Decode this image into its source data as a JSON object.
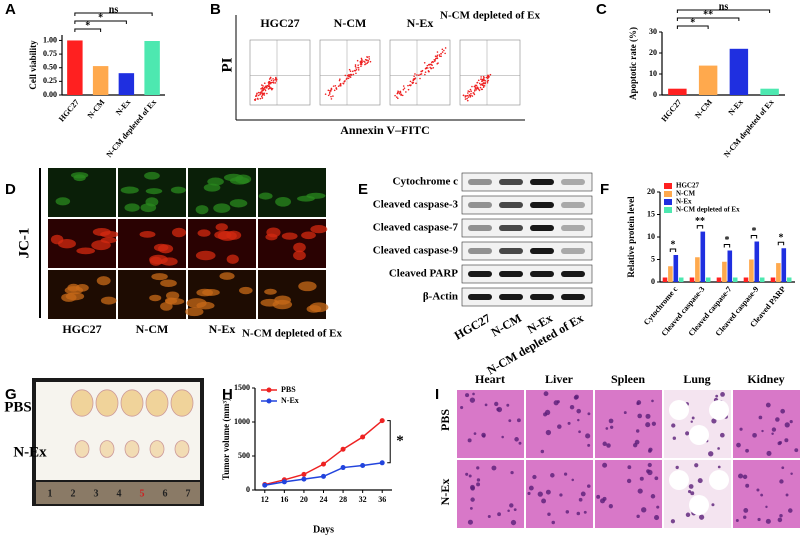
{
  "panel_labels": [
    "A",
    "B",
    "C",
    "D",
    "E",
    "F",
    "G",
    "H",
    "I"
  ],
  "chart_data": [
    {
      "type": "bar",
      "y_label": "Cell viability",
      "categories": [
        "HGC27",
        "N-CM",
        "N-Ex",
        "N-CM depleted of Ex"
      ],
      "values": [
        1.0,
        0.53,
        0.4,
        0.99
      ],
      "colors": [
        "#ff2020",
        "#ffa94d",
        "#1f2fe0",
        "#4de8b0"
      ],
      "ylim": [
        0,
        1.1
      ],
      "yticks": [
        {
          "value": 0,
          "label": "0.00"
        },
        {
          "value": 0.25,
          "label": "0.25"
        },
        {
          "value": 0.5,
          "label": "0.50"
        },
        {
          "value": 0.75,
          "label": "0.75"
        },
        {
          "value": 1,
          "label": "1.00"
        }
      ],
      "significance": [
        "*",
        "*",
        "ns"
      ]
    },
    {
      "type": "bar",
      "y_label": "Apoptotic rate (%)",
      "categories": [
        "HGC27",
        "N-CM",
        "N-Ex",
        "N-CM depleted of Ex"
      ],
      "values": [
        3,
        14,
        22,
        3
      ],
      "colors": [
        "#ff2020",
        "#ffa94d",
        "#1f2fe0",
        "#4de8b0"
      ],
      "ylim": [
        0,
        30
      ],
      "yticks": [
        0,
        10,
        20,
        30
      ],
      "significance": [
        "*",
        "**",
        "ns"
      ]
    },
    {
      "type": "grouped-bar",
      "y_label": "Relative protein level",
      "categories": [
        "Cytochrome c",
        "Cleaved caspase-3",
        "Cleaved caspase-7",
        "Cleaved caspase-9",
        "Cleaved PARP"
      ],
      "series": [
        {
          "name": "HGC27",
          "color": "#ff2020",
          "values": [
            1,
            1,
            1,
            1,
            1
          ]
        },
        {
          "name": "N-CM",
          "color": "#ffa94d",
          "values": [
            3.5,
            5.5,
            4.5,
            5,
            4.2
          ]
        },
        {
          "name": "N-Ex",
          "color": "#1f2fe0",
          "values": [
            6,
            11.2,
            7,
            9,
            7.5
          ]
        },
        {
          "name": "N-CM depleted of Ex",
          "color": "#4de8b0",
          "values": [
            1,
            1,
            1,
            1,
            1
          ]
        }
      ],
      "ylim": [
        0,
        20
      ],
      "yticks": [
        0,
        5,
        10,
        15,
        20
      ],
      "significance": [
        "*",
        "**",
        "*",
        "*",
        "*"
      ]
    },
    {
      "type": "line",
      "x_label": "Days",
      "y_label": "Tumor volume (mm³)",
      "x": [
        12,
        16,
        20,
        24,
        28,
        32,
        36
      ],
      "series": [
        {
          "name": "PBS",
          "color": "#ee2222",
          "values": [
            80,
            150,
            230,
            380,
            600,
            780,
            1020
          ]
        },
        {
          "name": "N-Ex",
          "color": "#2244dd",
          "values": [
            70,
            120,
            160,
            200,
            330,
            360,
            400
          ]
        }
      ],
      "xlim": [
        10,
        38
      ],
      "xticks": [
        12,
        16,
        20,
        24,
        28,
        32,
        36
      ],
      "ylim": [
        0,
        1500
      ],
      "yticks": [
        0,
        500,
        1000,
        1500
      ],
      "significance": [
        "*"
      ]
    }
  ],
  "flow": {
    "groups": [
      "HGC27",
      "N-CM",
      "N-Ex",
      "N-CM depleted of Ex"
    ],
    "y_label": "PI",
    "x_label": "Annexin V–FITC"
  },
  "jc1": {
    "label": "JC-1",
    "groups": [
      "HGC27",
      "N-CM",
      "N-Ex",
      "N-CM depleted of Ex"
    ]
  },
  "western": {
    "proteins": [
      "Cytochrome c",
      "Cleaved caspase-3",
      "Cleaved caspase-7",
      "Cleaved caspase-9",
      "Cleaved PARP",
      "β-Actin"
    ],
    "groups": [
      "HGC27",
      "N-CM",
      "N-Ex",
      "N-CM depleted of Ex"
    ]
  },
  "xenograft": {
    "rows": [
      "PBS",
      "N-Ex"
    ],
    "ruler": [
      "1",
      "2",
      "3",
      "4",
      "5",
      "6",
      "7"
    ]
  },
  "histology": {
    "organs": [
      "Heart",
      "Liver",
      "Spleen",
      "Lung",
      "Kidney"
    ],
    "rows": [
      "PBS",
      "N-Ex"
    ]
  }
}
